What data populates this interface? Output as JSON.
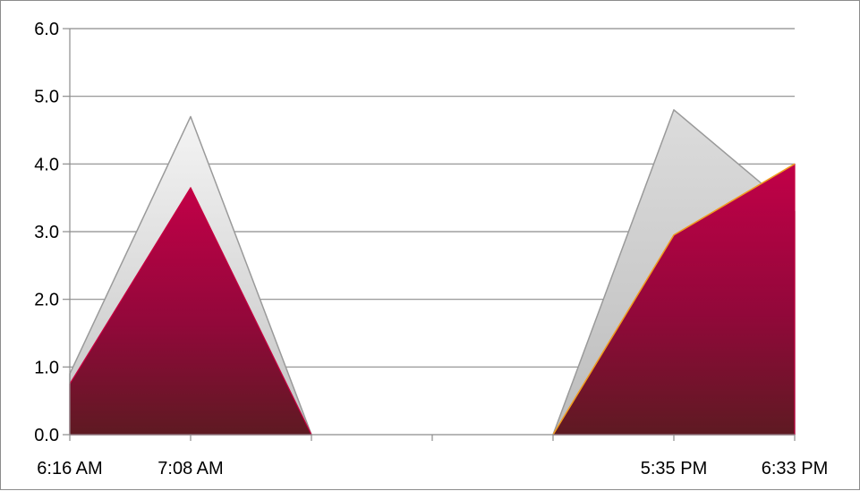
{
  "chart_data": {
    "type": "area",
    "title": "",
    "xlabel": "",
    "ylabel": "",
    "ylim": [
      0,
      6
    ],
    "y_ticks": [
      "0.0",
      "1.0",
      "2.0",
      "3.0",
      "4.0",
      "5.0",
      "6.0"
    ],
    "x_ticks": [
      "6:16 AM",
      "7:08 AM",
      "",
      "",
      "",
      "5:35 PM",
      "6:33 PM"
    ],
    "grid": true,
    "legend": "none",
    "series": [
      {
        "fill": "#d8d8d8",
        "values": [
          0.9,
          4.7,
          0.0,
          null,
          0.0,
          4.8,
          3.3
        ]
      },
      {
        "fill": "#a8003f",
        "values": [
          0.75,
          3.65,
          0.0,
          null,
          0.0,
          2.95,
          4.0
        ]
      }
    ],
    "accent_line_color": "#f0a020"
  }
}
